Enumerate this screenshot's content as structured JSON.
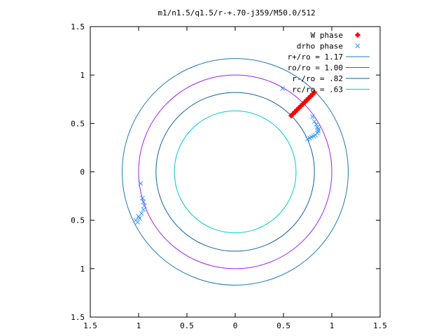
{
  "chart_data": {
    "type": "scatter",
    "title": "m1/n1.5/q1.5/r-+.70-j359/M50.0/512",
    "xlabel": "",
    "ylabel": "",
    "xlim": [
      -1.5,
      1.5
    ],
    "ylim": [
      -1.5,
      1.5
    ],
    "x_ticks": [
      -1.5,
      -1,
      -0.5,
      0,
      0.5,
      1,
      1.5
    ],
    "y_ticks": [
      -1.5,
      -1,
      -0.5,
      0,
      0.5,
      1,
      1.5
    ],
    "x_tick_labels": [
      "1.5",
      "1",
      "0.5",
      "0",
      "0.5",
      "1",
      "1.5"
    ],
    "y_tick_labels": [
      "1.5",
      "1",
      "0.5",
      "0",
      "0.5",
      "1",
      "1.5"
    ],
    "grid": false,
    "legend_position": "top-right",
    "series": [
      {
        "name": "W phase",
        "marker": "+",
        "color": "#ff0000",
        "x": [
          0.58,
          0.6,
          0.62,
          0.64,
          0.66,
          0.68,
          0.7,
          0.72,
          0.74,
          0.76,
          0.78,
          0.8,
          0.82
        ],
        "y": [
          0.58,
          0.6,
          0.62,
          0.64,
          0.66,
          0.68,
          0.7,
          0.72,
          0.74,
          0.76,
          0.78,
          0.8,
          0.82
        ]
      },
      {
        "name": "drho phase",
        "marker": "x",
        "color": "#3399ff",
        "x": [
          0.49,
          0.8,
          0.82,
          0.84,
          0.85,
          0.86,
          0.86,
          0.85,
          0.83,
          0.81,
          0.79,
          0.77,
          0.75,
          -0.98,
          -0.96,
          -0.95,
          -0.94,
          -0.95,
          -0.97,
          -1.0,
          -1.03,
          -0.99,
          -1.01
        ],
        "y": [
          0.86,
          0.57,
          0.52,
          0.49,
          0.46,
          0.44,
          0.42,
          0.4,
          0.38,
          0.37,
          0.36,
          0.35,
          0.34,
          -0.12,
          -0.27,
          -0.31,
          -0.35,
          -0.39,
          -0.43,
          -0.46,
          -0.5,
          -0.48,
          -0.52
        ]
      },
      {
        "name": "r+/ro = 1.17",
        "type": "circle",
        "radius": 1.17,
        "color": "#1e78b4"
      },
      {
        "name": "ro/ro = 1.00",
        "type": "circle",
        "radius": 1.0,
        "color": "#a020f0"
      },
      {
        "name": "r-/ro = .82",
        "type": "circle",
        "radius": 0.82,
        "color": "#1060a0"
      },
      {
        "name": "rc/ro = .63",
        "type": "circle",
        "radius": 0.63,
        "color": "#00cccc"
      }
    ]
  }
}
